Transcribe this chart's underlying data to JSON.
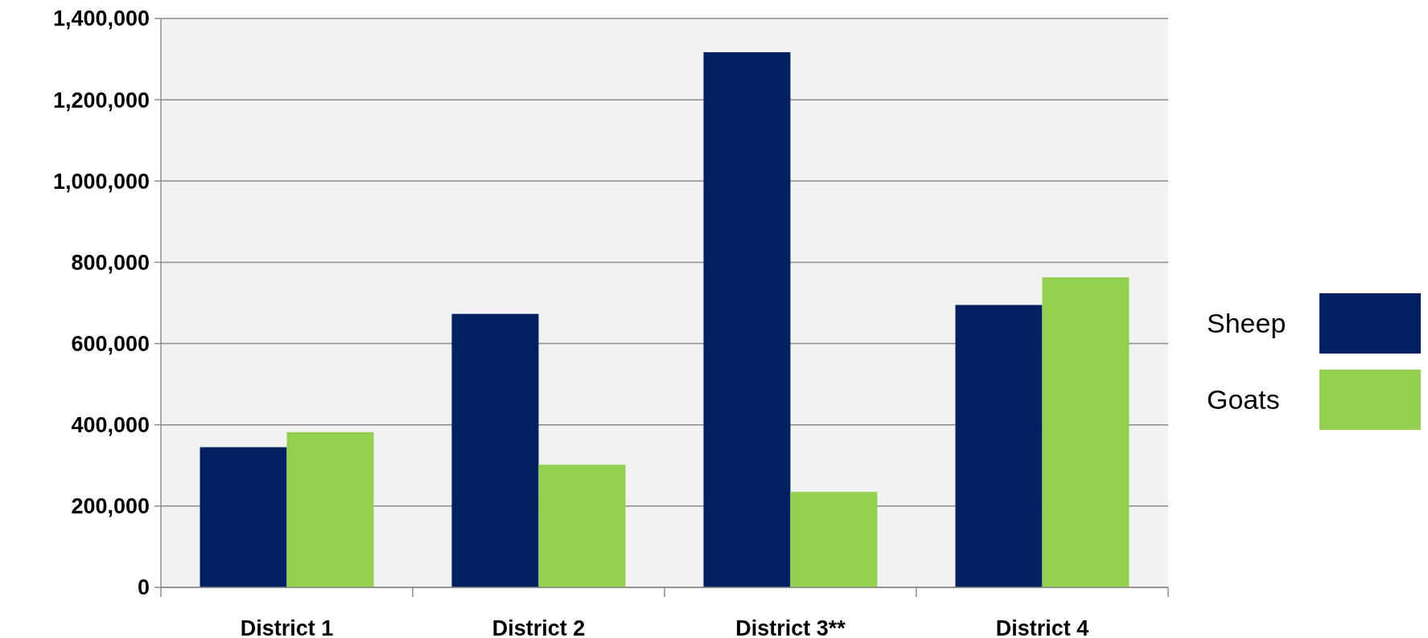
{
  "chart_data": {
    "type": "bar",
    "categories": [
      "District 1",
      "District 2",
      "District 3**",
      "District 4"
    ],
    "series": [
      {
        "name": "Sheep",
        "color": "#002060",
        "values": [
          345000,
          673000,
          1317000,
          695000
        ]
      },
      {
        "name": "Goats",
        "color": "#92d050",
        "values": [
          382000,
          302000,
          235000,
          763000
        ]
      }
    ],
    "ylim": [
      0,
      1400000
    ],
    "yticks": [
      {
        "value": 0,
        "label": "0"
      },
      {
        "value": 200000,
        "label": "200,000"
      },
      {
        "value": 400000,
        "label": "400,000"
      },
      {
        "value": 600000,
        "label": "600,000"
      },
      {
        "value": 800000,
        "label": "800,000"
      },
      {
        "value": 1000000,
        "label": "1,000,000"
      },
      {
        "value": 1200000,
        "label": "1,200,000"
      },
      {
        "value": 1400000,
        "label": "1,400,000"
      }
    ],
    "grid": "y",
    "legend": "right"
  }
}
